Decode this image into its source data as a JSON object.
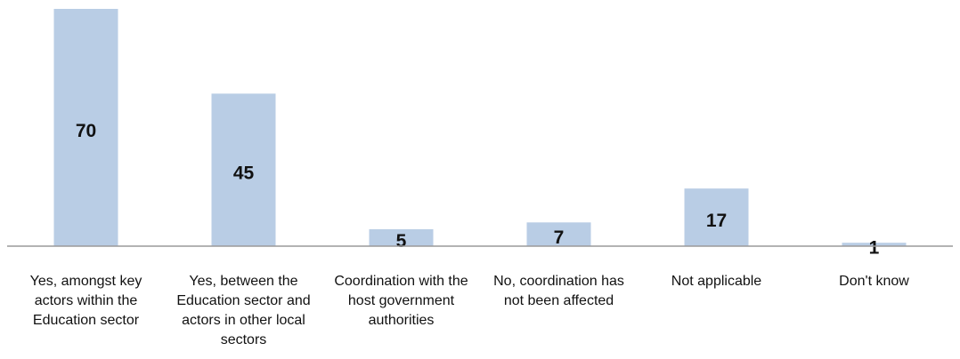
{
  "chart_data": {
    "type": "bar",
    "categories": [
      "Yes, amongst key actors within the Education sector",
      "Yes, between the Education sector and actors in other local sectors",
      "Coordination with the host government authorities",
      "No, coordination has not been affected",
      "Not applicable",
      "Don't know"
    ],
    "values": [
      70,
      45,
      5,
      7,
      17,
      1
    ],
    "color": "#b9cde5"
  }
}
